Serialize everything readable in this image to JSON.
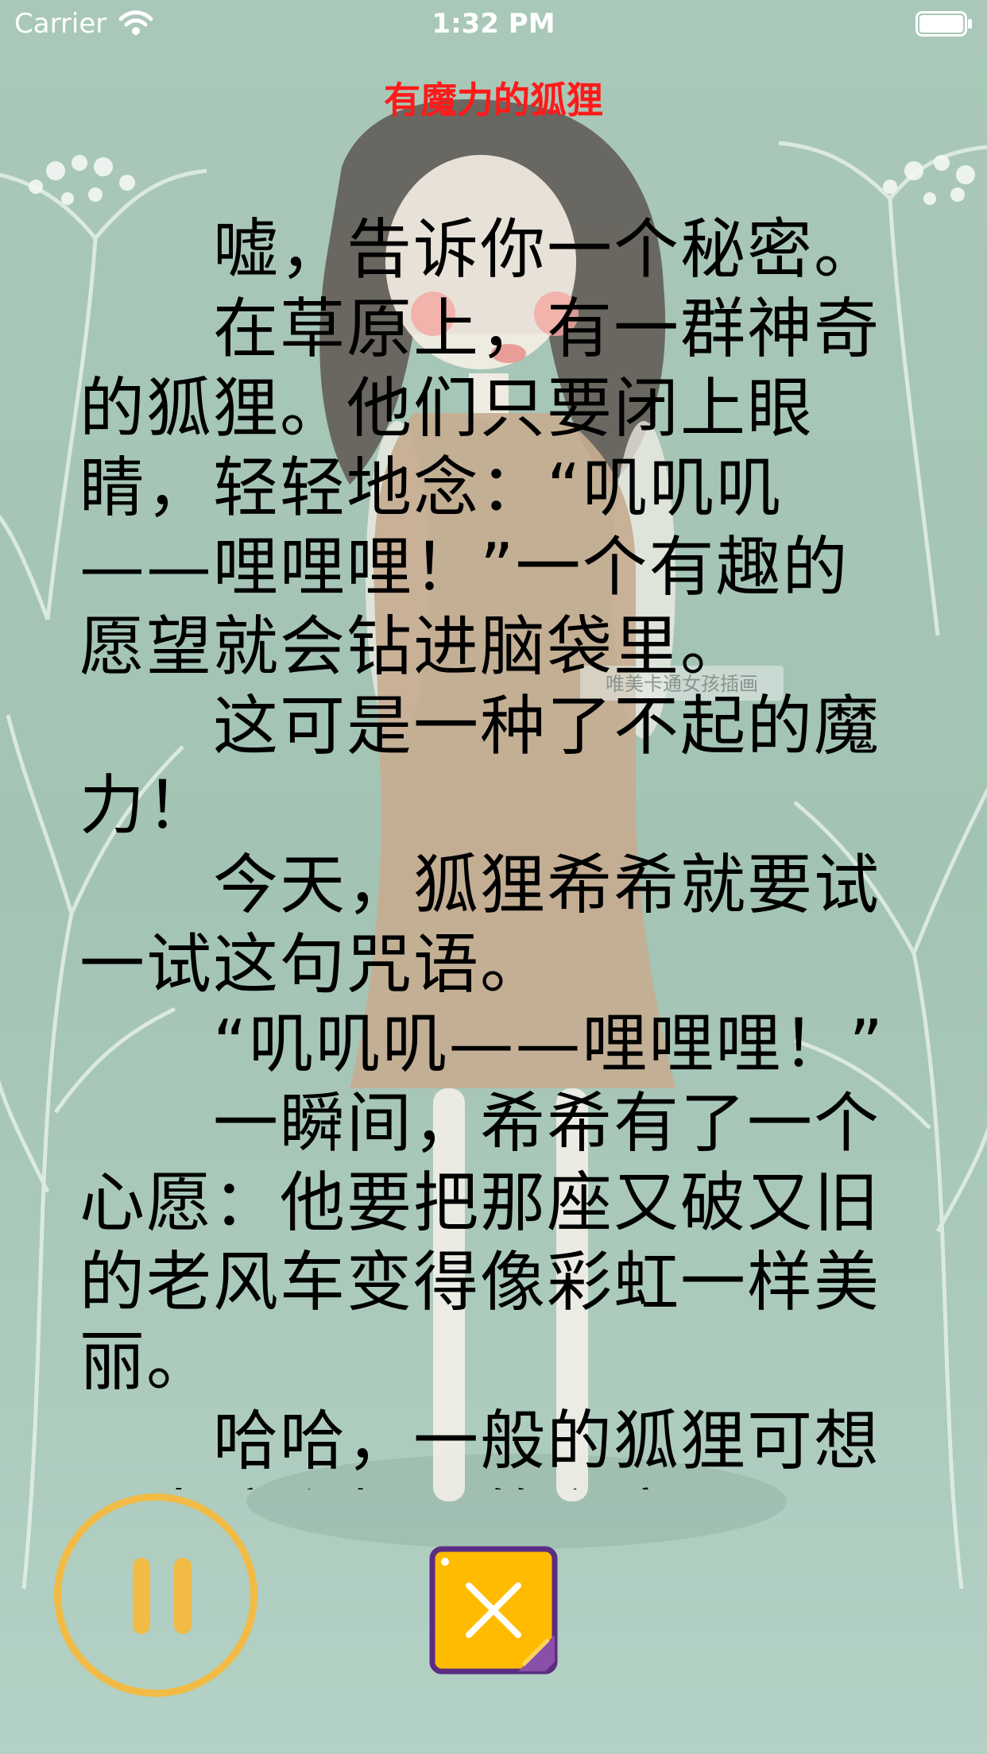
{
  "status_bar": {
    "carrier": "Carrier",
    "time": "1:32 PM",
    "wifi_icon": "wifi-icon",
    "battery_icon": "battery-icon"
  },
  "story": {
    "title": "有魔力的狐狸",
    "paragraphs": [
      "嘘，告诉你一个秘密。",
      "在草原上，有一群神奇的狐狸。他们只要闭上眼睛，轻轻地念：“叽叽叽——哩哩哩！”一个有趣的愿望就会钻进脑袋里。",
      "这可是一种了不起的魔力！",
      "今天，狐狸希希就要试一试这句咒语。",
      "“叽叽叽——哩哩哩！”",
      "一瞬间，希希有了一个心愿：他要把那座又破又旧的老风车变得像彩虹一样美丽。",
      "哈哈，一般的狐狸可想不出这么好玩的主意"
    ]
  },
  "controls": {
    "pause_icon": "pause-icon",
    "close_icon": "close-icon"
  },
  "background": {
    "watermark": "唯美卡通女孩插画"
  },
  "colors": {
    "title": "#ff1a1a",
    "accent": "#f1bb45",
    "close_fill": "#ffbb00",
    "close_border": "#5a2d82"
  }
}
